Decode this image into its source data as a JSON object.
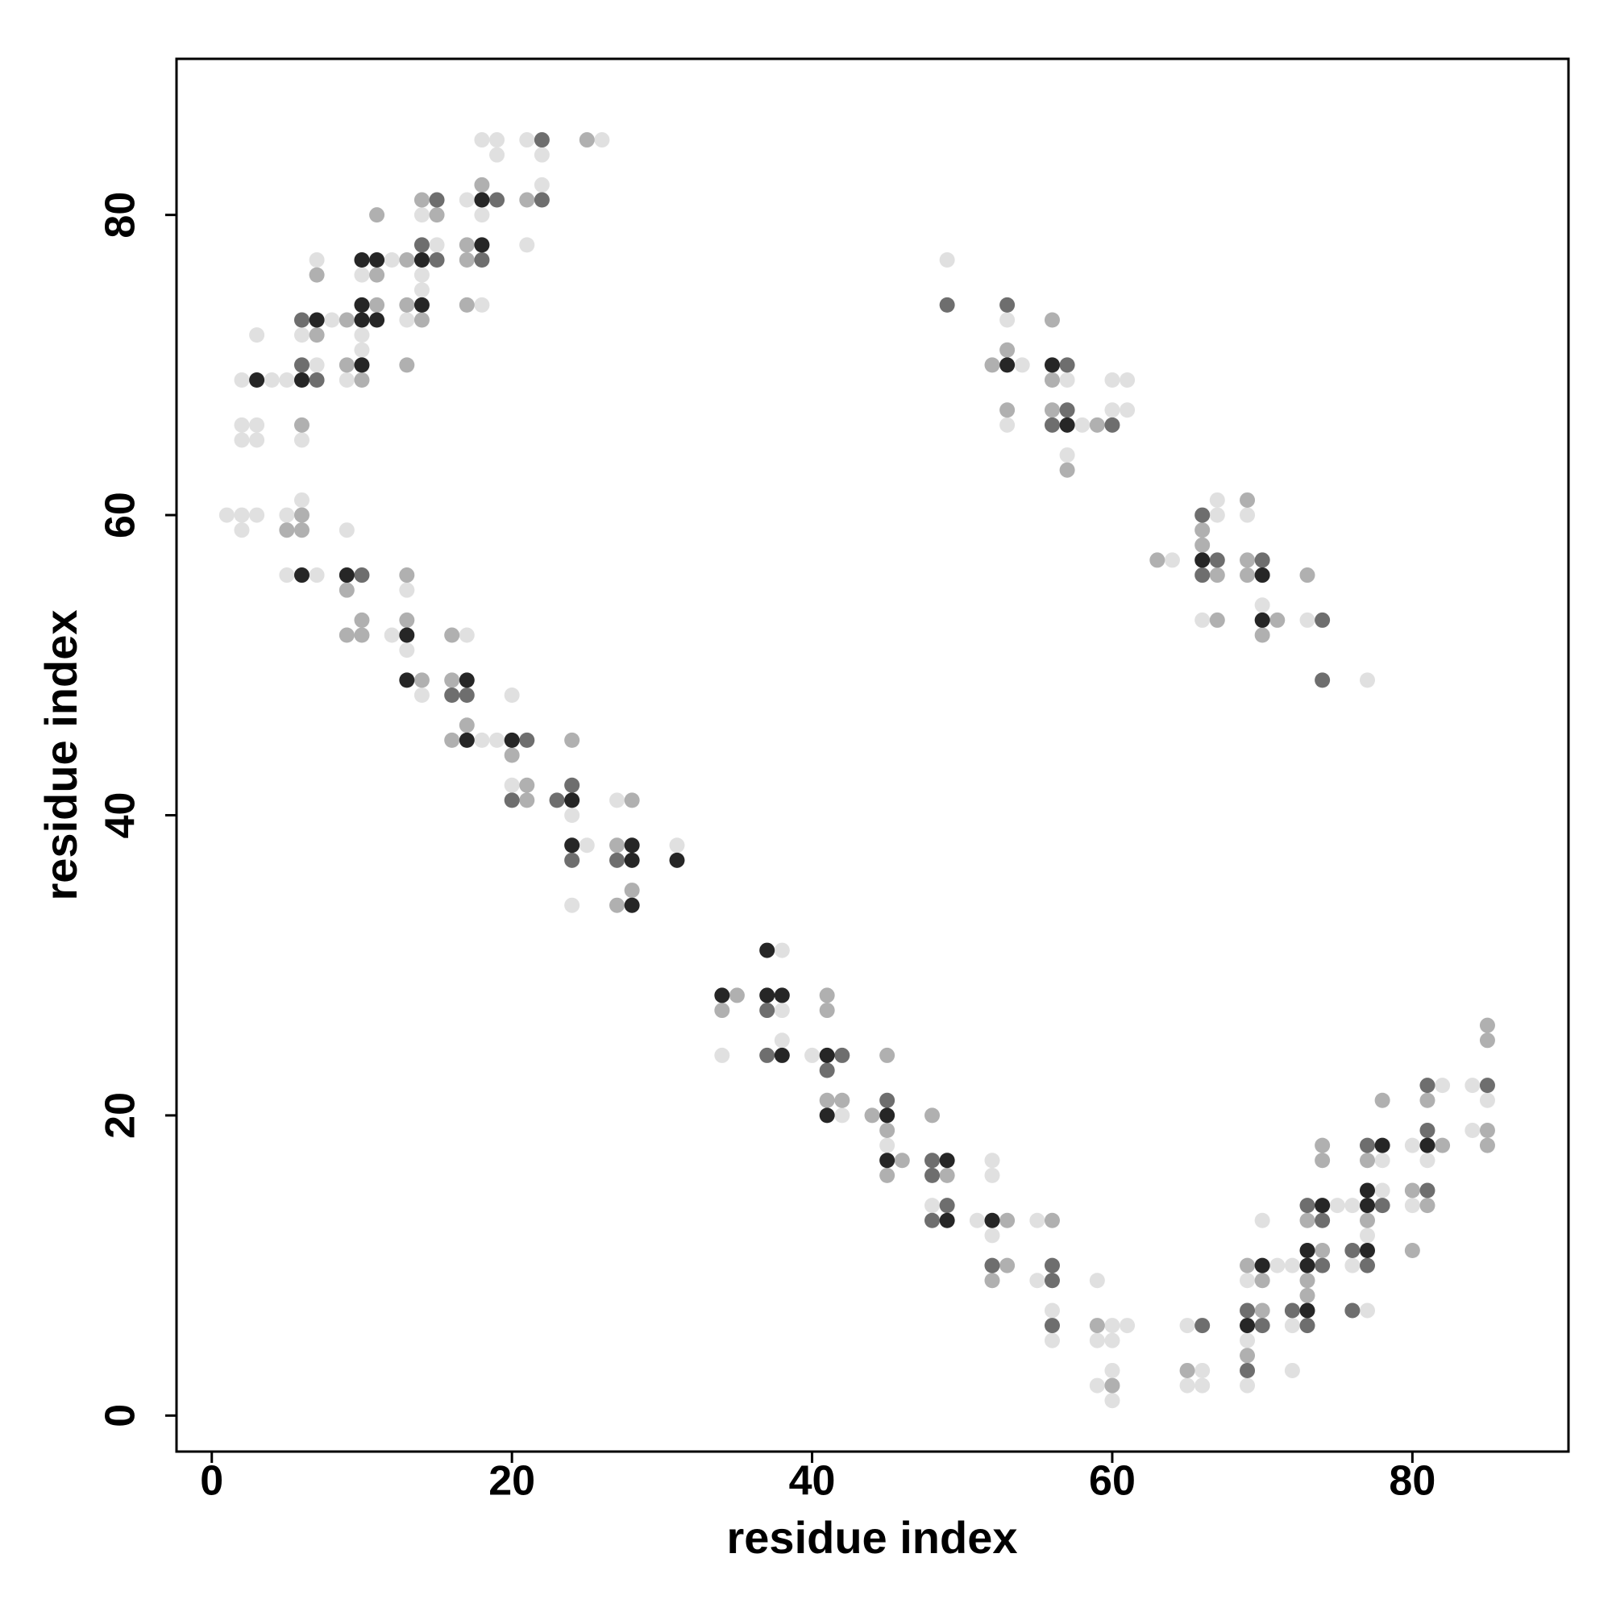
{
  "chart_data": {
    "type": "scatter",
    "xlabel": "residue index",
    "ylabel": "residue index",
    "xlim": [
      -2.35,
      90.4
    ],
    "ylim": [
      -2.4,
      90.4
    ],
    "xticks": [
      0,
      20,
      40,
      60,
      80
    ],
    "yticks": [
      0,
      20,
      40,
      60,
      80
    ],
    "series": [
      {
        "color": "#e0e0e0",
        "x": [
          1,
          2,
          2,
          2,
          2,
          2,
          3,
          3,
          3,
          3,
          4,
          5,
          5,
          5,
          6,
          6,
          6,
          7,
          7,
          7,
          8,
          9,
          9,
          10,
          10,
          10,
          12,
          12,
          13,
          13,
          13,
          14,
          14,
          14,
          14,
          15,
          17,
          17,
          18,
          18,
          18,
          18,
          19,
          19,
          19,
          20,
          20,
          21,
          21,
          22,
          22,
          24,
          24,
          25,
          26,
          27,
          31,
          34,
          38,
          38,
          38,
          40,
          42,
          45,
          48,
          49,
          51,
          52,
          52,
          52,
          53,
          53,
          54,
          55,
          55,
          56,
          56,
          57,
          57,
          58,
          59,
          59,
          59,
          60,
          60,
          60,
          60,
          60,
          60,
          61,
          61,
          61,
          64,
          65,
          65,
          66,
          66,
          66,
          67,
          67,
          69,
          69,
          69,
          69,
          70,
          70,
          71,
          72,
          72,
          72,
          73,
          75,
          76,
          76,
          77,
          77,
          77,
          78,
          78,
          80,
          80,
          81,
          82,
          84,
          84,
          85
        ],
        "y": [
          60,
          60,
          59,
          65,
          66,
          69,
          60,
          65,
          66,
          72,
          69,
          60,
          56,
          69,
          61,
          65,
          72,
          56,
          70,
          77,
          73,
          59,
          69,
          71,
          72,
          76,
          52,
          77,
          55,
          51,
          73,
          48,
          75,
          76,
          80,
          78,
          52,
          81,
          45,
          74,
          80,
          85,
          45,
          84,
          85,
          48,
          42,
          78,
          85,
          82,
          84,
          40,
          34,
          38,
          85,
          41,
          38,
          24,
          31,
          27,
          25,
          24,
          20,
          18,
          14,
          77,
          13,
          17,
          16,
          12,
          73,
          66,
          70,
          13,
          9,
          7,
          5,
          69,
          64,
          66,
          9,
          5,
          2,
          6,
          5,
          3,
          1,
          69,
          67,
          6,
          69,
          67,
          57,
          6,
          2,
          3,
          2,
          53,
          61,
          60,
          9,
          5,
          2,
          60,
          13,
          54,
          10,
          10,
          6,
          3,
          53,
          14,
          14,
          10,
          12,
          7,
          49,
          17,
          15,
          18,
          14,
          17,
          22,
          22,
          19,
          21
        ]
      },
      {
        "color": "#b0b0b0",
        "x": [
          5,
          6,
          6,
          6,
          7,
          7,
          9,
          9,
          9,
          9,
          10,
          10,
          10,
          11,
          11,
          11,
          13,
          13,
          13,
          13,
          13,
          14,
          14,
          14,
          15,
          16,
          16,
          16,
          17,
          17,
          17,
          17,
          18,
          20,
          21,
          21,
          21,
          24,
          25,
          27,
          27,
          28,
          28,
          34,
          35,
          41,
          41,
          41,
          42,
          44,
          45,
          45,
          45,
          46,
          48,
          49,
          52,
          52,
          53,
          53,
          53,
          53,
          56,
          56,
          56,
          56,
          57,
          59,
          59,
          60,
          63,
          65,
          66,
          66,
          67,
          67,
          69,
          69,
          69,
          69,
          69,
          70,
          70,
          70,
          71,
          73,
          73,
          73,
          73,
          74,
          74,
          74,
          77,
          77,
          78,
          80,
          80,
          81,
          81,
          82,
          85,
          85,
          85,
          85
        ],
        "y": [
          59,
          60,
          59,
          66,
          72,
          76,
          55,
          52,
          70,
          73,
          53,
          52,
          69,
          74,
          76,
          80,
          56,
          53,
          70,
          74,
          77,
          49,
          73,
          81,
          80,
          52,
          49,
          45,
          46,
          74,
          77,
          78,
          82,
          44,
          42,
          41,
          81,
          45,
          85,
          38,
          34,
          41,
          35,
          27,
          28,
          28,
          27,
          21,
          21,
          20,
          24,
          19,
          16,
          17,
          20,
          16,
          9,
          70,
          13,
          10,
          71,
          67,
          13,
          69,
          67,
          73,
          63,
          6,
          66,
          2,
          57,
          3,
          59,
          58,
          56,
          53,
          10,
          4,
          61,
          57,
          56,
          9,
          7,
          52,
          53,
          13,
          9,
          8,
          56,
          18,
          17,
          11,
          17,
          13,
          21,
          15,
          11,
          21,
          14,
          18,
          26,
          25,
          19,
          18
        ]
      },
      {
        "color": "#6e6e6e",
        "x": [
          6,
          6,
          7,
          10,
          14,
          15,
          15,
          16,
          17,
          18,
          19,
          20,
          21,
          22,
          22,
          23,
          24,
          24,
          27,
          37,
          37,
          41,
          42,
          45,
          48,
          48,
          48,
          49,
          49,
          52,
          53,
          56,
          56,
          56,
          56,
          57,
          57,
          60,
          66,
          66,
          66,
          67,
          69,
          69,
          70,
          70,
          72,
          73,
          73,
          74,
          74,
          74,
          74,
          76,
          76,
          77,
          77,
          78,
          81,
          81,
          81,
          85
        ],
        "y": [
          70,
          73,
          69,
          56,
          78,
          77,
          81,
          48,
          48,
          77,
          81,
          41,
          45,
          81,
          85,
          41,
          42,
          37,
          37,
          27,
          24,
          23,
          24,
          21,
          17,
          16,
          13,
          14,
          74,
          10,
          74,
          10,
          9,
          6,
          66,
          70,
          67,
          66,
          6,
          60,
          56,
          57,
          7,
          3,
          57,
          6,
          7,
          14,
          6,
          13,
          10,
          53,
          49,
          11,
          7,
          18,
          10,
          14,
          22,
          19,
          15,
          22
        ]
      },
      {
        "color": "#262626",
        "x": [
          3,
          6,
          6,
          7,
          9,
          10,
          10,
          10,
          10,
          11,
          11,
          13,
          13,
          14,
          14,
          17,
          17,
          18,
          18,
          20,
          24,
          24,
          28,
          28,
          28,
          31,
          34,
          37,
          37,
          38,
          38,
          41,
          41,
          45,
          45,
          49,
          49,
          52,
          53,
          56,
          57,
          66,
          69,
          70,
          70,
          70,
          73,
          73,
          73,
          74,
          77,
          77,
          77,
          78,
          81
        ],
        "y": [
          69,
          56,
          69,
          73,
          56,
          70,
          73,
          74,
          77,
          73,
          77,
          52,
          49,
          74,
          77,
          49,
          45,
          78,
          81,
          45,
          41,
          38,
          38,
          37,
          34,
          37,
          28,
          31,
          28,
          28,
          24,
          24,
          20,
          20,
          17,
          17,
          13,
          13,
          70,
          70,
          66,
          57,
          6,
          10,
          56,
          53,
          11,
          10,
          7,
          14,
          15,
          14,
          11,
          18,
          18
        ]
      }
    ]
  }
}
